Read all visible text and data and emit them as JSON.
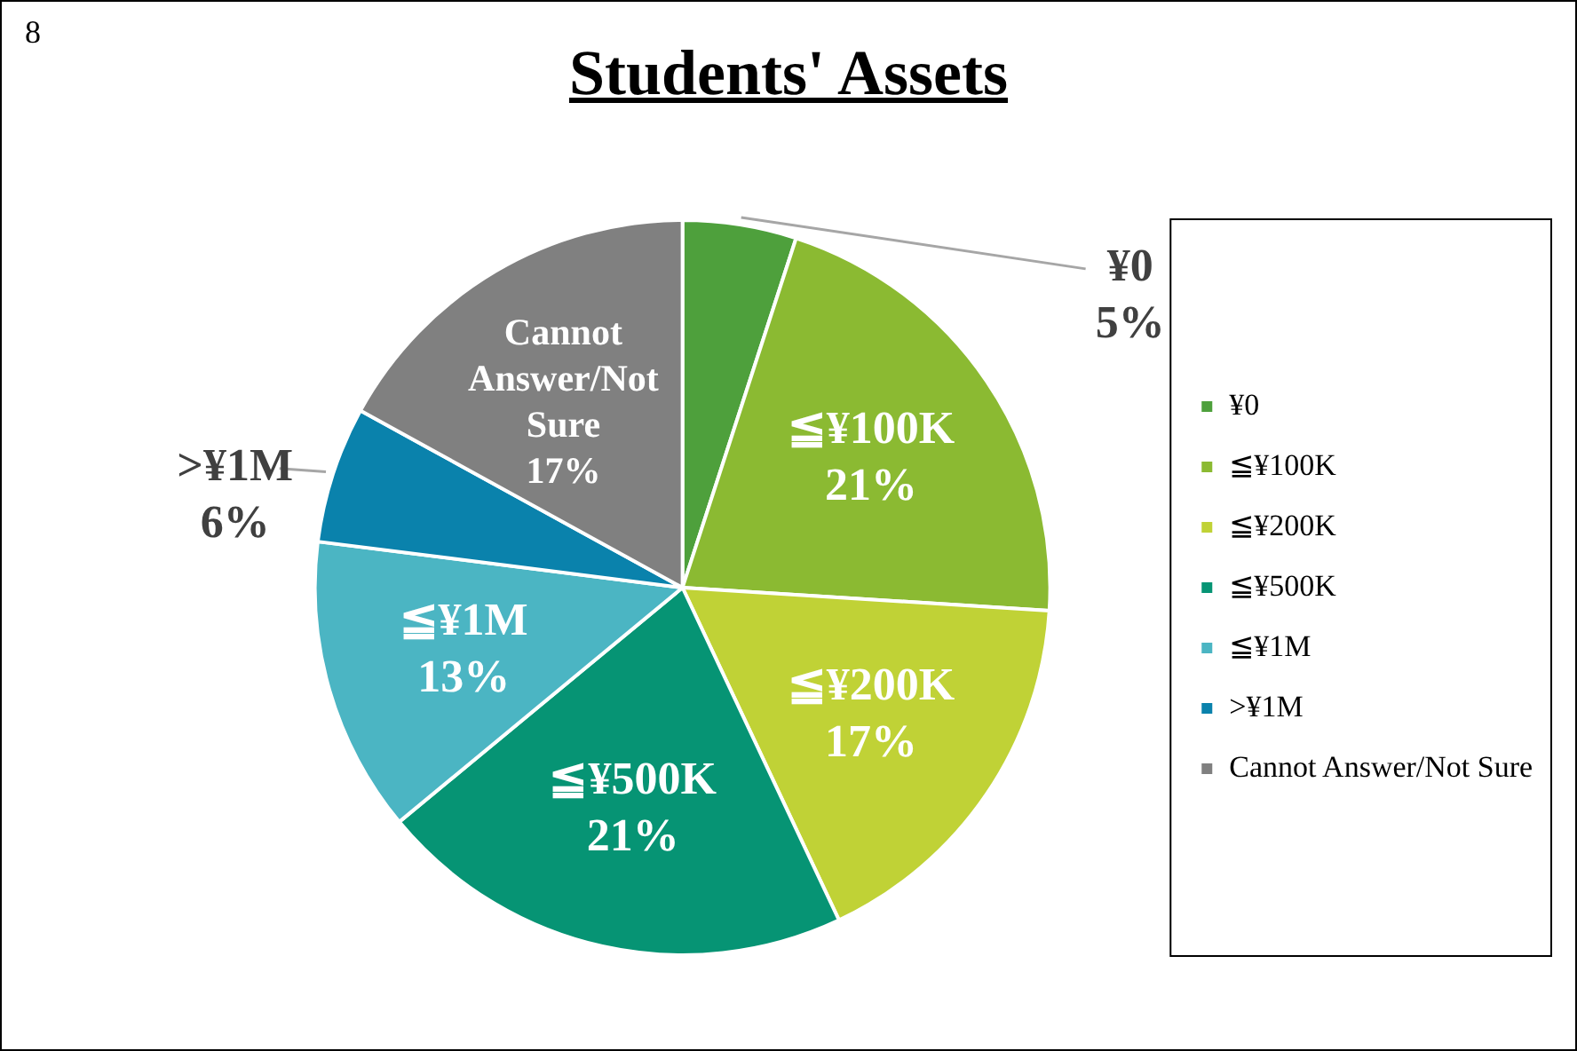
{
  "chart_data": {
    "type": "pie",
    "title": "Students' Assets",
    "annotations": [
      "8"
    ],
    "categories": [
      "¥0",
      "≦¥100K",
      "≦¥200K",
      "≦¥500K",
      "≦¥1M",
      ">¥1M",
      "Cannot Answer/Not Sure"
    ],
    "values": [
      5,
      21,
      17,
      21,
      13,
      6,
      17
    ],
    "value_labels": [
      "5%",
      "21%",
      "17%",
      "21%",
      "13%",
      "6%",
      "17%"
    ],
    "colors": [
      "#4ea03c",
      "#8bba32",
      "#c0d236",
      "#069474",
      "#4bb5c3",
      "#0a82ac",
      "#808080"
    ],
    "legend": "right"
  }
}
